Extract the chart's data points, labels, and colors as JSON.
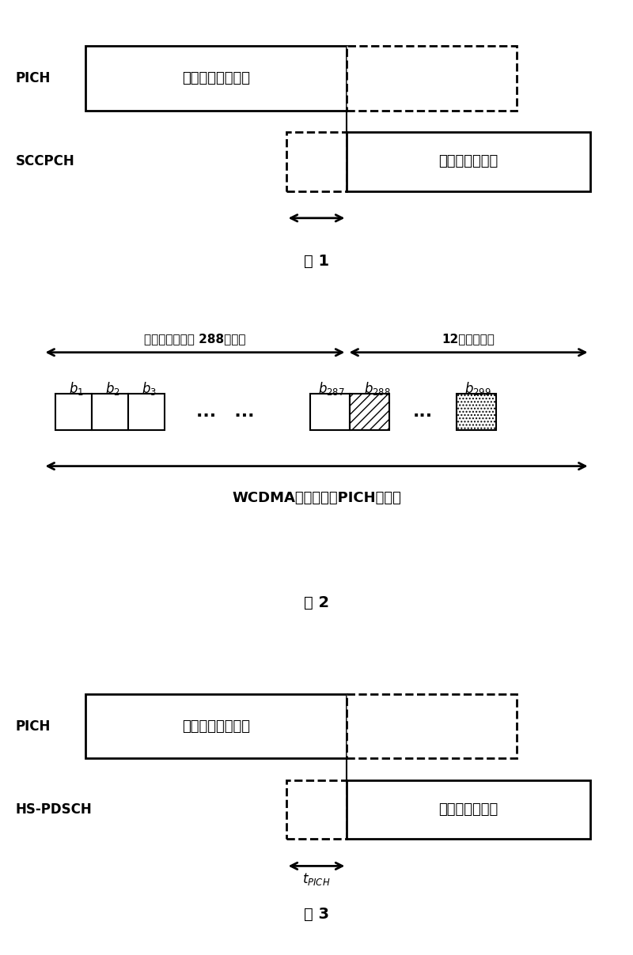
{
  "fig1": {
    "pich_label": "PICH",
    "sccpch_label": "SCCPCH",
    "pich_text": "包含寻呼指示的帧",
    "sccpch_text": "寻呼消息内容帧",
    "caption": "图 1"
  },
  "fig2": {
    "arrow1_text": "用于寻呼指示的 288个比特",
    "arrow2_text": "12个预留比特",
    "bottom_arrow_text": "WCDMA现有技术中PICH帧结构",
    "caption": "图 2"
  },
  "fig3": {
    "pich_label": "PICH",
    "hspdsch_label": "HS-PDSCH",
    "pich_text": "包含寻呼指示的帧",
    "hspdsch_text": "寻呼消息内容帧",
    "caption": "图 3"
  },
  "bg_color": "#ffffff",
  "text_color": "#000000"
}
